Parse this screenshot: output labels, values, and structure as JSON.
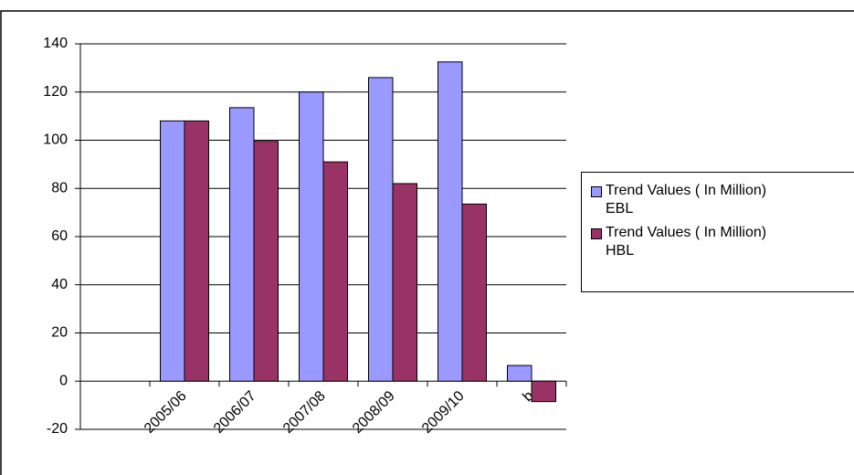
{
  "chart_data": {
    "type": "bar",
    "categories": [
      null,
      "2005/06",
      "2006/07",
      "2007/08",
      "2008/09",
      "2009/10",
      "b"
    ],
    "series": [
      {
        "name": "Trend Values ( In Million) EBL",
        "color": "#9999ff",
        "values": [
          null,
          108,
          113.5,
          120,
          126,
          132.5,
          6.5
        ]
      },
      {
        "name": "Trend Values ( In Million) HBL",
        "color": "#993366",
        "values": [
          null,
          108,
          99.5,
          91,
          82,
          73.5,
          -8.5
        ]
      }
    ],
    "ylim": [
      -20,
      140
    ],
    "yticks": [
      -20,
      0,
      20,
      40,
      60,
      80,
      100,
      120,
      140
    ],
    "grid": true,
    "legend": "right"
  }
}
